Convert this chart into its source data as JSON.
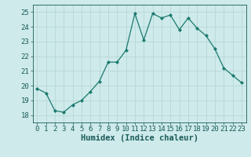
{
  "x": [
    0,
    1,
    2,
    3,
    4,
    5,
    6,
    7,
    8,
    9,
    10,
    11,
    12,
    13,
    14,
    15,
    16,
    17,
    18,
    19,
    20,
    21,
    22,
    23
  ],
  "y": [
    19.8,
    19.5,
    18.3,
    18.2,
    18.7,
    19.0,
    19.6,
    20.3,
    21.6,
    21.6,
    22.4,
    24.9,
    23.1,
    24.9,
    24.6,
    24.8,
    23.8,
    24.6,
    23.9,
    23.4,
    22.5,
    21.2,
    20.7,
    20.2
  ],
  "xlabel": "Humidex (Indice chaleur)",
  "xlim": [
    -0.5,
    23.5
  ],
  "ylim": [
    17.5,
    25.5
  ],
  "yticks": [
    18,
    19,
    20,
    21,
    22,
    23,
    24,
    25
  ],
  "xticks": [
    0,
    1,
    2,
    3,
    4,
    5,
    6,
    7,
    8,
    9,
    10,
    11,
    12,
    13,
    14,
    15,
    16,
    17,
    18,
    19,
    20,
    21,
    22,
    23
  ],
  "line_color": "#1a7a6e",
  "marker": "D",
  "marker_size": 2.0,
  "bg_color": "#ceeaea",
  "grid_color": "#b8d8d8",
  "tick_label_color": "#1a5a5a",
  "xlabel_color": "#1a5a5a",
  "xlabel_fontsize": 7.5,
  "tick_fontsize": 6.5
}
